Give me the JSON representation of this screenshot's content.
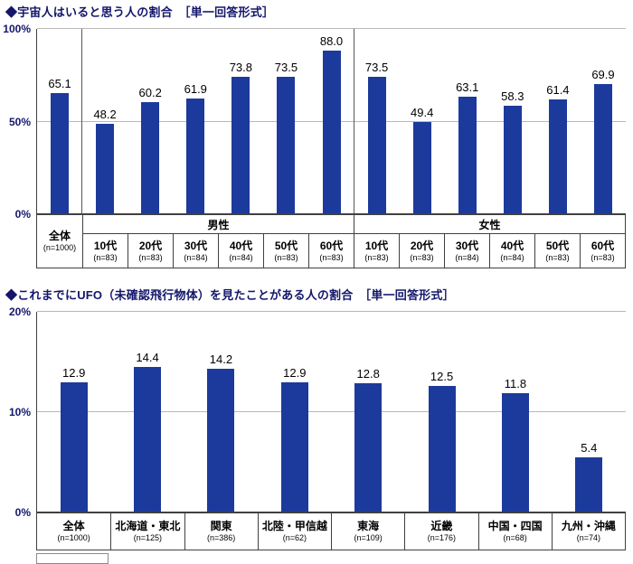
{
  "chart_data": [
    {
      "type": "bar",
      "title": "◆宇宙人はいると思う人の割合　［単一回答形式］",
      "bar_color": "#1c3a9c",
      "ylim": [
        0,
        100
      ],
      "yticks": [
        0,
        50,
        100
      ],
      "ytick_labels": [
        "0%",
        "50%",
        "100%"
      ],
      "grid": true,
      "legend": "none",
      "column_groups": [
        {
          "header": "",
          "columns": [
            {
              "label": "全体",
              "n": "(n=1000)",
              "value": 65.1
            }
          ]
        },
        {
          "header": "男性",
          "columns": [
            {
              "label": "10代",
              "n": "(n=83)",
              "value": 48.2
            },
            {
              "label": "20代",
              "n": "(n=83)",
              "value": 60.2
            },
            {
              "label": "30代",
              "n": "(n=84)",
              "value": 61.9
            },
            {
              "label": "40代",
              "n": "(n=84)",
              "value": 73.8
            },
            {
              "label": "50代",
              "n": "(n=83)",
              "value": 73.5
            },
            {
              "label": "60代",
              "n": "(n=83)",
              "value": 88.0
            }
          ]
        },
        {
          "header": "女性",
          "columns": [
            {
              "label": "10代",
              "n": "(n=83)",
              "value": 73.5
            },
            {
              "label": "20代",
              "n": "(n=83)",
              "value": 49.4
            },
            {
              "label": "30代",
              "n": "(n=84)",
              "value": 63.1
            },
            {
              "label": "40代",
              "n": "(n=84)",
              "value": 58.3
            },
            {
              "label": "50代",
              "n": "(n=83)",
              "value": 61.4
            },
            {
              "label": "60代",
              "n": "(n=83)",
              "value": 69.9
            }
          ]
        }
      ]
    },
    {
      "type": "bar",
      "title": "◆これまでにUFO（未確認飛行物体）を見たことがある人の割合　［単一回答形式］",
      "bar_color": "#1c3a9c",
      "ylim": [
        0,
        20
      ],
      "yticks": [
        0,
        10,
        20
      ],
      "ytick_labels": [
        "0%",
        "10%",
        "20%"
      ],
      "grid": true,
      "legend": "none",
      "column_groups": [
        {
          "header": "",
          "columns": [
            {
              "label": "全体",
              "n": "(n=1000)",
              "value": 12.9
            },
            {
              "label": "北海道・東北",
              "n": "(n=125)",
              "value": 14.4
            },
            {
              "label": "関東",
              "n": "(n=386)",
              "value": 14.2
            },
            {
              "label": "北陸・甲信越",
              "n": "(n=62)",
              "value": 12.9
            },
            {
              "label": "東海",
              "n": "(n=109)",
              "value": 12.8
            },
            {
              "label": "近畿",
              "n": "(n=176)",
              "value": 12.5
            },
            {
              "label": "中国・四国",
              "n": "(n=68)",
              "value": 11.8
            },
            {
              "label": "九州・沖縄",
              "n": "(n=74)",
              "value": 5.4
            }
          ]
        }
      ]
    }
  ]
}
